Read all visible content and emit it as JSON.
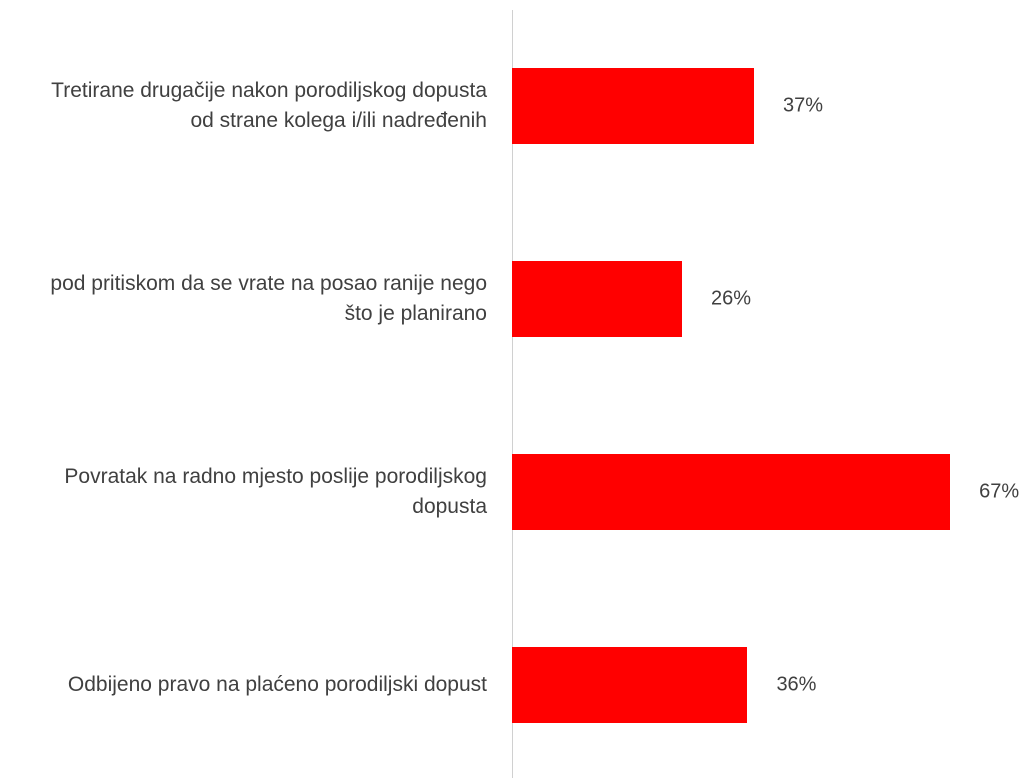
{
  "chart_data": {
    "type": "bar",
    "orientation": "horizontal",
    "categories": [
      "Tretirane drugačije nakon porodiljskog dopusta od strane kolega i/ili nadređenih",
      "pod pritiskom da se vrate na posao ranije nego što je planirano",
      "Povratak na radno mjesto poslije porodiljskog dopusta",
      "Odbijeno pravo na plaćeno porodiljski dopust"
    ],
    "values": [
      37,
      26,
      67,
      36
    ],
    "value_labels": [
      "37%",
      "26%",
      "67%",
      "36%"
    ],
    "color": "#ff0000"
  }
}
